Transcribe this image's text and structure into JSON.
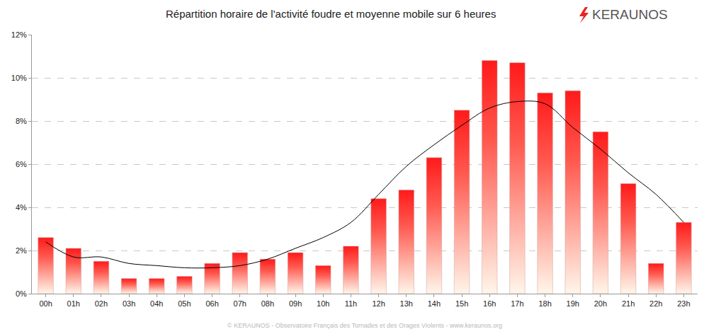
{
  "chart_data": {
    "type": "bar",
    "title": "Répartition horaire de l'activité foudre et moyenne mobile sur 6 heures",
    "annotations": [
      "KERAUNOS",
      "© KERAUNOS - Observatoire Français des Tornades et des Orages Violents - www.keraunos.org"
    ],
    "categories": [
      "00h",
      "01h",
      "02h",
      "03h",
      "04h",
      "05h",
      "06h",
      "07h",
      "08h",
      "09h",
      "10h",
      "11h",
      "12h",
      "13h",
      "14h",
      "15h",
      "16h",
      "17h",
      "18h",
      "19h",
      "20h",
      "21h",
      "22h",
      "23h"
    ],
    "series": [
      {
        "type": "bar",
        "color": "#ff1a1a",
        "values": [
          2.6,
          2.1,
          1.5,
          0.7,
          0.7,
          0.8,
          1.4,
          1.9,
          1.6,
          1.9,
          1.3,
          2.2,
          4.4,
          4.8,
          6.3,
          8.5,
          10.8,
          10.7,
          9.3,
          9.4,
          7.5,
          5.1,
          1.4,
          3.3
        ]
      },
      {
        "type": "line",
        "color": "#000000",
        "line_style": "smooth",
        "values": [
          2.4,
          1.7,
          1.7,
          1.4,
          1.3,
          1.2,
          1.2,
          1.3,
          1.6,
          2.1,
          2.6,
          3.3,
          4.6,
          5.9,
          6.9,
          7.8,
          8.6,
          8.9,
          8.8,
          7.7,
          6.7,
          5.6,
          4.6,
          3.3
        ]
      }
    ],
    "ylim": [
      0,
      12
    ],
    "yticks": [
      {
        "value": 0,
        "label": "0%"
      },
      {
        "value": 2,
        "label": "2%"
      },
      {
        "value": 4,
        "label": "4%"
      },
      {
        "value": 6,
        "label": "6%"
      },
      {
        "value": 8,
        "label": "8%"
      },
      {
        "value": 10,
        "label": "10%"
      },
      {
        "value": 12,
        "label": "12%"
      }
    ],
    "grid": true
  }
}
